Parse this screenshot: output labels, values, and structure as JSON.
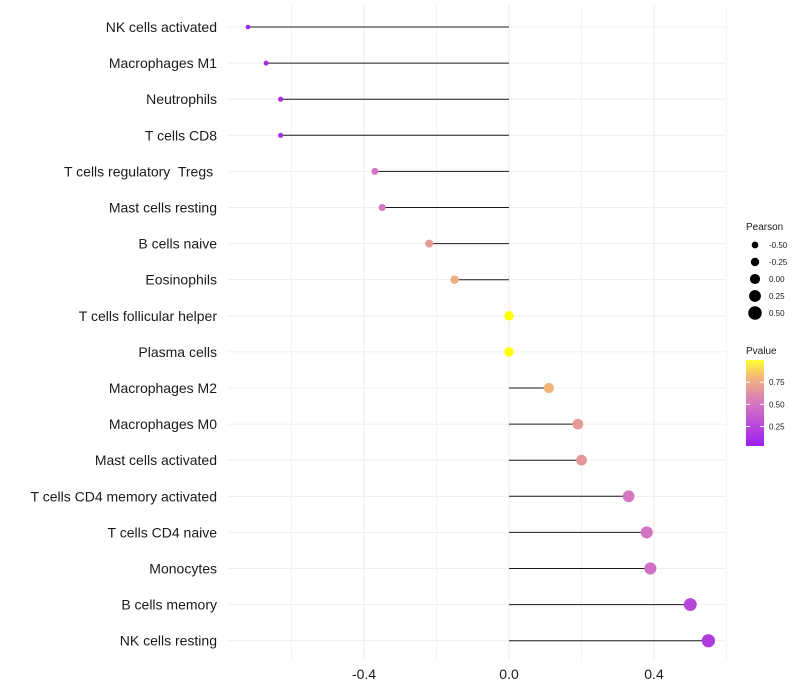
{
  "chart_data": {
    "type": "lollipop",
    "title": "",
    "xlabel": "",
    "ylabel": "",
    "xlim": [
      -0.75,
      0.6
    ],
    "xticks": [
      -0.4,
      0.0,
      0.4
    ],
    "xtick_labels": [
      "-0.4",
      "0.0",
      "0.4"
    ],
    "grid": true,
    "categories": [
      "NK cells activated",
      "Macrophages M1",
      "Neutrophils",
      "T cells CD8",
      "T cells regulatory  Tregs ",
      "Mast cells resting",
      "B cells naive",
      "Eosinophils",
      "T cells follicular helper",
      "Plasma cells",
      "Macrophages M2",
      "Macrophages M0",
      "Mast cells activated",
      "T cells CD4 memory activated",
      "T cells CD4 naive",
      "Monocytes",
      "B cells memory",
      "NK cells resting"
    ],
    "pearson": [
      -0.72,
      -0.67,
      -0.63,
      -0.63,
      -0.37,
      -0.35,
      -0.22,
      -0.15,
      0.0,
      0.0,
      0.11,
      0.19,
      0.2,
      0.33,
      0.38,
      0.39,
      0.5,
      0.55
    ],
    "pvalue": [
      0.05,
      0.08,
      0.1,
      0.1,
      0.38,
      0.4,
      0.6,
      0.7,
      1.0,
      1.0,
      0.75,
      0.6,
      0.58,
      0.4,
      0.38,
      0.37,
      0.2,
      0.15
    ],
    "legend_size": {
      "title": "Pearson",
      "labels": [
        "-0.50",
        "-0.25",
        "0.00",
        "0.25",
        "0.50"
      ],
      "values": [
        -0.5,
        -0.25,
        0.0,
        0.25,
        0.5
      ]
    },
    "legend_color": {
      "title": "Pvalue",
      "labels": [
        "0.75",
        "0.50",
        "0.25"
      ],
      "values": [
        0.75,
        0.5,
        0.25
      ],
      "range": [
        0.03,
        1.0
      ]
    },
    "colors": {
      "low": "#9d1ef0",
      "mid": "#d678c0",
      "high": "#ffff00",
      "stem": "#1a1a1a",
      "grid": "#ebebeb"
    }
  }
}
